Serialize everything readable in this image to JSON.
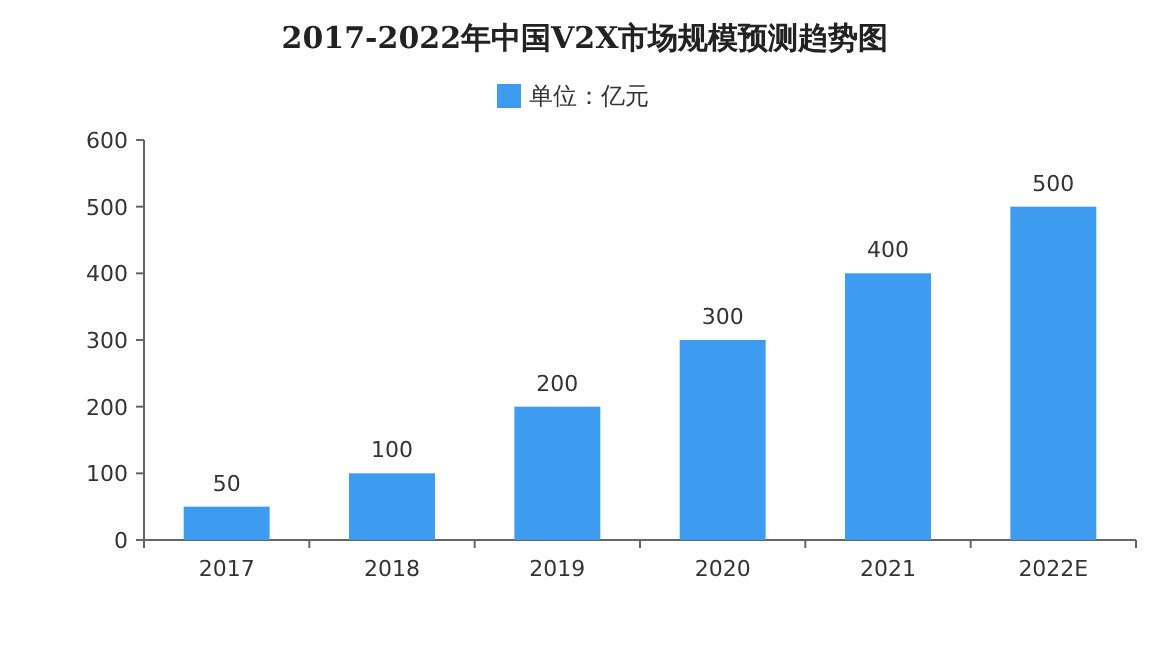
{
  "chart_data": {
    "type": "bar",
    "title": "2017-2022年中国V2X市场规模预测趋势图",
    "categories": [
      "2017",
      "2018",
      "2019",
      "2020",
      "2021",
      "2022E"
    ],
    "series": [
      {
        "name": "单位：亿元",
        "color": "#3d9cf0",
        "values": [
          50,
          100,
          200,
          300,
          400,
          500
        ]
      }
    ],
    "ylim": [
      0,
      600
    ],
    "yticks": [
      0,
      100,
      200,
      300,
      400,
      500,
      600
    ],
    "data_labels": true,
    "legend": "top"
  }
}
